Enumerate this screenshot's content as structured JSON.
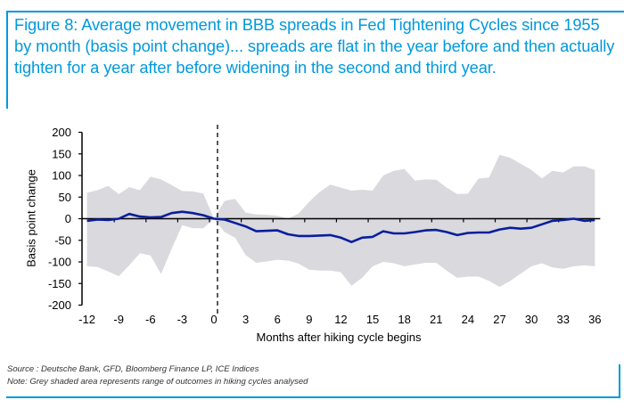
{
  "title": "Figure 8: Average movement in BBB spreads in Fed Tightening Cycles since 1955 by month (basis point change)... spreads are flat in the year before and then actually tighten for a year after before widening in the second and third year.",
  "source": {
    "line1": "Source : Deutsche Bank, GFD, Bloomberg Finance LP, ICE Indices",
    "line2": "Note: Grey shaded area represents range of outcomes in hiking cycles analysed"
  },
  "colors": {
    "accent": "#0099dd",
    "line": "#0a1e9c",
    "band": "#d9d9de",
    "axis": "#000000"
  },
  "chart_data": {
    "type": "line",
    "title": "",
    "xlabel": "Months after hiking cycle begins",
    "ylabel": "Basis point change",
    "ylim": [
      -200,
      200
    ],
    "xlim": [
      -12,
      36
    ],
    "yticks": [
      200,
      150,
      100,
      50,
      0,
      -50,
      -100,
      -150,
      -200
    ],
    "xticks": [
      -12,
      -9,
      -6,
      -3,
      0,
      3,
      6,
      9,
      12,
      15,
      18,
      21,
      24,
      27,
      30,
      33,
      36
    ],
    "vertical_marker": {
      "x": 0,
      "style": "dashed"
    },
    "x": [
      -12,
      -11,
      -10,
      -9,
      -8,
      -7,
      -6,
      -5,
      -4,
      -3,
      -2,
      -1,
      0,
      1,
      2,
      3,
      4,
      5,
      6,
      7,
      8,
      9,
      10,
      11,
      12,
      13,
      14,
      15,
      16,
      17,
      18,
      19,
      20,
      21,
      22,
      23,
      24,
      25,
      26,
      27,
      28,
      29,
      30,
      31,
      32,
      33,
      34,
      35,
      36
    ],
    "series": [
      {
        "name": "Average",
        "style": "line",
        "values": [
          -5,
          -2,
          -3,
          0,
          11,
          5,
          3,
          4,
          13,
          16,
          13,
          8,
          0,
          -2,
          -10,
          -18,
          -29,
          -28,
          -27,
          -36,
          -40,
          -40,
          -39,
          -38,
          -44,
          -54,
          -44,
          -42,
          -29,
          -34,
          -34,
          -31,
          -27,
          -26,
          -31,
          -38,
          -33,
          -32,
          -32,
          -25,
          -21,
          -23,
          -21,
          -13,
          -5,
          -3,
          0,
          -5,
          -3
        ]
      },
      {
        "name": "Range high",
        "style": "band-upper",
        "values": [
          60,
          66,
          76,
          57,
          73,
          66,
          97,
          91,
          78,
          64,
          63,
          58,
          0,
          41,
          46,
          14,
          10,
          9,
          7,
          0,
          12,
          39,
          62,
          79,
          72,
          65,
          67,
          65,
          100,
          111,
          115,
          88,
          91,
          90,
          72,
          57,
          58,
          93,
          95,
          148,
          141,
          127,
          113,
          93,
          111,
          107,
          121,
          121,
          113
        ]
      },
      {
        "name": "Range low",
        "style": "band-lower",
        "values": [
          -110,
          -112,
          -122,
          -133,
          -108,
          -80,
          -85,
          -128,
          -70,
          -15,
          -22,
          -22,
          0,
          -31,
          -44,
          -84,
          -102,
          -99,
          -95,
          -97,
          -104,
          -118,
          -120,
          -120,
          -124,
          -155,
          -137,
          -110,
          -100,
          -103,
          -110,
          -106,
          -102,
          -102,
          -120,
          -137,
          -134,
          -134,
          -144,
          -158,
          -144,
          -127,
          -110,
          -103,
          -113,
          -116,
          -110,
          -108,
          -110
        ]
      }
    ],
    "legend": "none",
    "grid": false,
    "annotation": "Grey shaded area represents range of outcomes in hiking cycles analysed"
  }
}
